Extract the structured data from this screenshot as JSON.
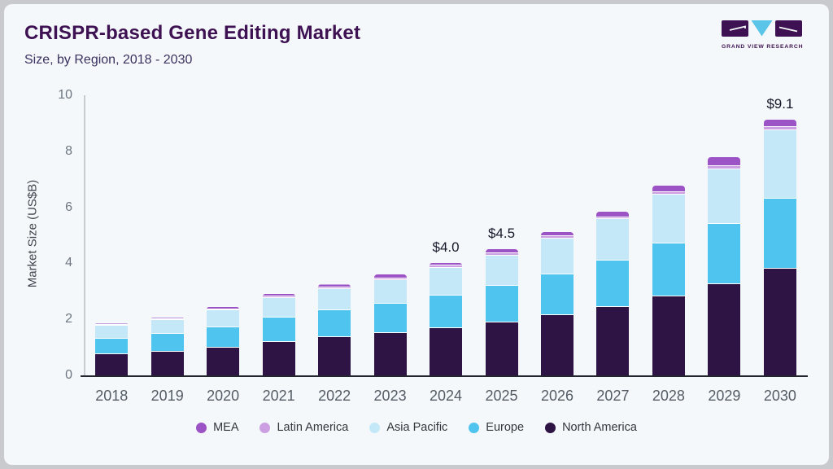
{
  "header": {
    "title": "CRISPR-based Gene Editing Market",
    "subtitle": "Size, by Region, 2018 - 2030"
  },
  "logo": {
    "text": "GRAND VIEW RESEARCH",
    "dark_color": "#3d1152",
    "accent_color": "#5bc4e9"
  },
  "chart_data": {
    "type": "bar",
    "stacked": true,
    "title": "CRISPR-based Gene Editing Market",
    "subtitle": "Size, by Region, 2018 - 2030",
    "xlabel": "",
    "ylabel": "Market Size (US$B)",
    "ylim": [
      0,
      10
    ],
    "y_ticks": [
      0,
      2,
      4,
      6,
      8,
      10
    ],
    "grid": false,
    "legend_position": "bottom",
    "categories": [
      "2018",
      "2019",
      "2020",
      "2021",
      "2022",
      "2023",
      "2024",
      "2025",
      "2026",
      "2027",
      "2028",
      "2029",
      "2030"
    ],
    "series": [
      {
        "name": "North America",
        "color": "#2e1345",
        "values": [
          0.76,
          0.85,
          1.0,
          1.2,
          1.37,
          1.52,
          1.7,
          1.9,
          2.15,
          2.45,
          2.83,
          3.25,
          3.8
        ]
      },
      {
        "name": "Europe",
        "color": "#4fc4ef",
        "values": [
          0.56,
          0.63,
          0.72,
          0.87,
          0.95,
          1.05,
          1.15,
          1.3,
          1.45,
          1.66,
          1.88,
          2.15,
          2.5
        ]
      },
      {
        "name": "Asia Pacific",
        "color": "#c4e8f7",
        "values": [
          0.46,
          0.5,
          0.6,
          0.7,
          0.76,
          0.84,
          1.0,
          1.08,
          1.28,
          1.46,
          1.73,
          1.95,
          2.45
        ]
      },
      {
        "name": "Latin America",
        "color": "#cb9fe2",
        "values": [
          0.03,
          0.03,
          0.04,
          0.04,
          0.05,
          0.06,
          0.06,
          0.07,
          0.08,
          0.08,
          0.1,
          0.13,
          0.13
        ]
      },
      {
        "name": "MEA",
        "color": "#9c53c6",
        "values": [
          0.04,
          0.05,
          0.08,
          0.1,
          0.12,
          0.14,
          0.1,
          0.15,
          0.16,
          0.2,
          0.22,
          0.3,
          0.25
        ]
      }
    ],
    "totals_labels": {
      "2024": "$4.0",
      "2025": "$4.5",
      "2030": "$9.1"
    },
    "legend_order": [
      "MEA",
      "Latin America",
      "Asia Pacific",
      "Europe",
      "North America"
    ]
  }
}
